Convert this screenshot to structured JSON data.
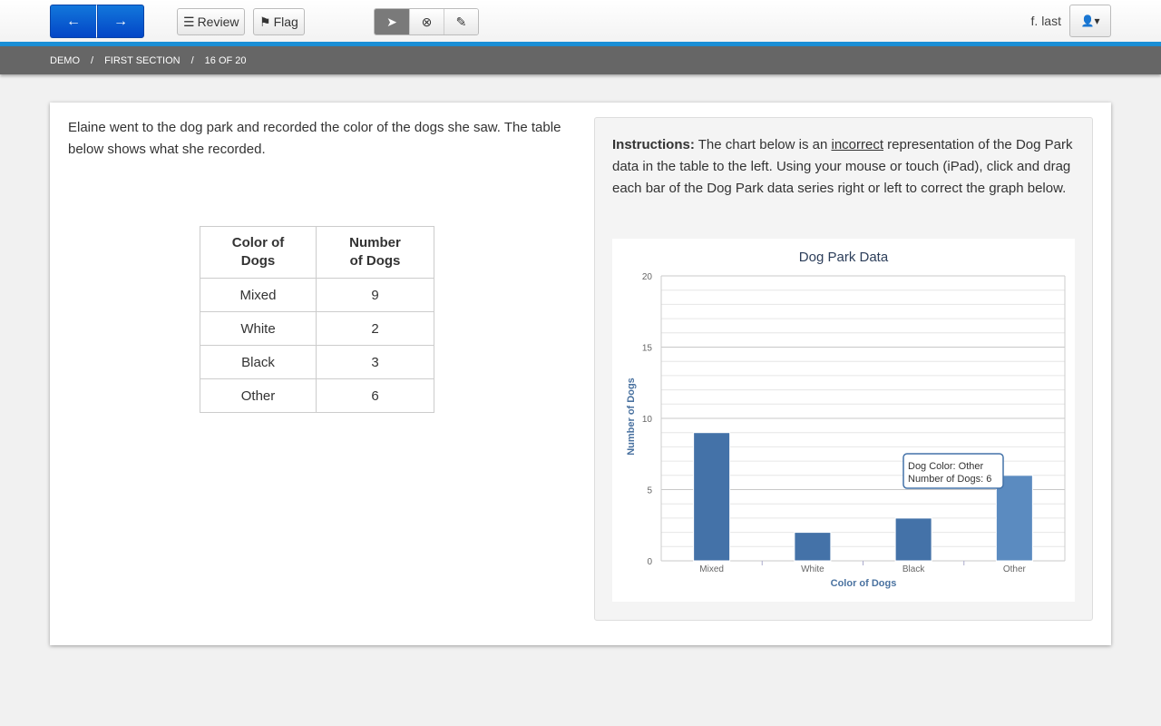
{
  "toolbar": {
    "back": "←",
    "forward": "→",
    "review": "Review",
    "flag": "Flag",
    "user": "f. last",
    "tools": [
      "pointer-icon",
      "eliminate-icon",
      "highlighter-icon"
    ]
  },
  "breadcrumb": [
    "DEMO",
    "FIRST SECTION",
    "16 OF 20"
  ],
  "question": {
    "text": "Elaine went to the dog park and recorded the color of the dogs she saw. The table below shows what she recorded.",
    "table": {
      "headers": [
        "Color of Dogs",
        "Number of Dogs"
      ],
      "rows": [
        [
          "Mixed",
          "9"
        ],
        [
          "White",
          "2"
        ],
        [
          "Black",
          "3"
        ],
        [
          "Other",
          "6"
        ]
      ]
    }
  },
  "instructions": {
    "label": "Instructions:",
    "pre": " The chart below is an ",
    "emph": "incorrect",
    "post": " representation of the Dog Park data in the table to the left. Using your mouse or touch (iPad), click and drag each bar of the Dog Park data series right or left to correct the graph below."
  },
  "chart_data": {
    "type": "bar",
    "title": "Dog Park Data",
    "xlabel": "Color of Dogs",
    "ylabel": "Number of Dogs",
    "categories": [
      "Mixed",
      "White",
      "Black",
      "Other"
    ],
    "values": [
      9,
      2,
      3,
      6
    ],
    "ylim": [
      0,
      20
    ],
    "yticks": [
      0,
      5,
      10,
      15,
      20
    ],
    "grid": true,
    "bar_color": "#4472a8",
    "highlight_color": "#5b8bc0",
    "tooltip": {
      "line1": "Dog Color: Other",
      "line2": "Number of Dogs: 6"
    }
  }
}
